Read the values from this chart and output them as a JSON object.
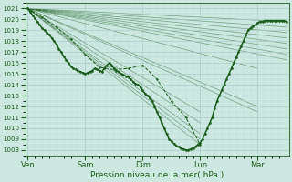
{
  "xlabel": "Pression niveau de la mer( hPa )",
  "bg_color": "#cce8e0",
  "grid_major_color": "#aacccc",
  "grid_minor_color": "#bbdddd",
  "line_color": "#1a5c1a",
  "ylim": [
    1007.5,
    1021.5
  ],
  "yticks": [
    1008,
    1009,
    1010,
    1011,
    1012,
    1013,
    1014,
    1015,
    1016,
    1017,
    1018,
    1019,
    1020,
    1021
  ],
  "xtick_labels": [
    "Ven",
    "Sam",
    "Dim",
    "Lun",
    "Mar"
  ],
  "xtick_positions": [
    0,
    24,
    48,
    72,
    96
  ],
  "xlim": [
    -1,
    109
  ],
  "main_line_x": [
    0,
    1,
    2,
    3,
    4,
    5,
    6,
    7,
    8,
    9,
    10,
    11,
    12,
    13,
    14,
    15,
    16,
    17,
    18,
    19,
    20,
    21,
    22,
    23,
    24,
    25,
    26,
    27,
    28,
    29,
    30,
    31,
    32,
    33,
    34,
    35,
    36,
    37,
    38,
    39,
    40,
    41,
    42,
    43,
    44,
    45,
    46,
    47,
    48,
    49,
    50,
    51,
    52,
    53,
    54,
    55,
    56,
    57,
    58,
    59,
    60,
    61,
    62,
    63,
    64,
    65,
    66,
    67,
    68,
    69,
    70,
    71,
    72,
    73,
    74,
    75,
    76,
    77,
    78,
    79,
    80,
    81,
    82,
    83,
    84,
    85,
    86,
    87,
    88,
    89,
    90,
    91,
    92,
    93,
    94,
    95,
    96,
    97,
    98,
    99,
    100,
    101,
    102,
    103,
    104,
    105,
    106,
    107,
    108
  ],
  "main_line_y": [
    1021,
    1020.7,
    1020.4,
    1020.1,
    1019.8,
    1019.5,
    1019.2,
    1019.0,
    1018.8,
    1018.6,
    1018.3,
    1018.0,
    1017.7,
    1017.3,
    1017.0,
    1016.6,
    1016.3,
    1016.0,
    1015.7,
    1015.5,
    1015.4,
    1015.3,
    1015.2,
    1015.1,
    1015.0,
    1015.1,
    1015.2,
    1015.3,
    1015.5,
    1015.4,
    1015.3,
    1015.2,
    1015.5,
    1015.8,
    1016.0,
    1015.8,
    1015.5,
    1015.3,
    1015.2,
    1015.0,
    1014.9,
    1014.8,
    1014.7,
    1014.5,
    1014.3,
    1014.1,
    1014.0,
    1013.8,
    1013.5,
    1013.2,
    1013.0,
    1012.8,
    1012.5,
    1012.0,
    1011.5,
    1011.0,
    1010.5,
    1010.0,
    1009.5,
    1009.0,
    1008.8,
    1008.6,
    1008.4,
    1008.3,
    1008.2,
    1008.1,
    1008.0,
    1008.0,
    1008.1,
    1008.2,
    1008.3,
    1008.5,
    1008.7,
    1009.0,
    1009.5,
    1010.0,
    1010.5,
    1011.0,
    1011.8,
    1012.5,
    1013.0,
    1013.5,
    1014.0,
    1014.5,
    1015.0,
    1015.5,
    1016.0,
    1016.5,
    1017.0,
    1017.5,
    1018.0,
    1018.5,
    1019.0,
    1019.2,
    1019.4,
    1019.5,
    1019.7,
    1019.8,
    1019.8,
    1019.9,
    1019.9,
    1019.9,
    1019.9,
    1019.9,
    1019.9,
    1019.9,
    1019.9,
    1019.9,
    1019.8
  ],
  "fan_lines": [
    {
      "x0": 0,
      "y0": 1021,
      "x1": 108,
      "y1": 1019.8
    },
    {
      "x0": 0,
      "y0": 1021,
      "x1": 108,
      "y1": 1019.3
    },
    {
      "x0": 0,
      "y0": 1021,
      "x1": 108,
      "y1": 1018.8
    },
    {
      "x0": 0,
      "y0": 1021,
      "x1": 108,
      "y1": 1018.3
    },
    {
      "x0": 0,
      "y0": 1021,
      "x1": 108,
      "y1": 1017.8
    },
    {
      "x0": 0,
      "y0": 1021,
      "x1": 108,
      "y1": 1017.3
    },
    {
      "x0": 0,
      "y0": 1021,
      "x1": 108,
      "y1": 1016.8
    },
    {
      "x0": 0,
      "y0": 1021,
      "x1": 108,
      "y1": 1016.3
    },
    {
      "x0": 0,
      "y0": 1021,
      "x1": 96,
      "y1": 1015.5
    },
    {
      "x0": 0,
      "y0": 1021,
      "x1": 96,
      "y1": 1012.0
    },
    {
      "x0": 0,
      "y0": 1021,
      "x1": 96,
      "y1": 1011.5
    },
    {
      "x0": 0,
      "y0": 1021,
      "x1": 72,
      "y1": 1011.5
    },
    {
      "x0": 0,
      "y0": 1021,
      "x1": 72,
      "y1": 1010.5
    },
    {
      "x0": 0,
      "y0": 1021,
      "x1": 72,
      "y1": 1009.5
    },
    {
      "x0": 0,
      "y0": 1021,
      "x1": 72,
      "y1": 1009.0
    },
    {
      "x0": 0,
      "y0": 1021,
      "x1": 72,
      "y1": 1008.5
    }
  ],
  "dotted_line_x": [
    0,
    6,
    12,
    18,
    24,
    30,
    36,
    42,
    48,
    54,
    60,
    66,
    72
  ],
  "dotted_line_y": [
    1021,
    1020.2,
    1019.3,
    1018.2,
    1016.8,
    1015.6,
    1015.4,
    1015.5,
    1015.8,
    1014.5,
    1012.5,
    1011.0,
    1008.5
  ]
}
